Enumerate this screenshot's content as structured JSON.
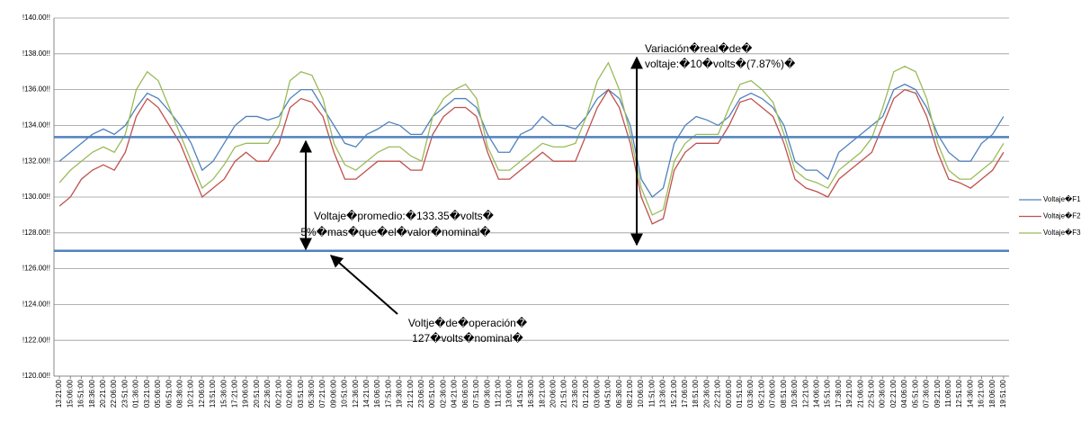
{
  "chart_data": {
    "type": "line",
    "categories": [
      "13:21:00",
      "15:06:00",
      "16:51:00",
      "18:36:00",
      "20:21:00",
      "22:06:00",
      "23:51:00",
      "01:36:00",
      "03:21:00",
      "05:06:00",
      "06:51:00",
      "08:36:00",
      "10:21:00",
      "12:06:00",
      "13:51:00",
      "15:36:00",
      "17:21:00",
      "19:06:00",
      "20:51:00",
      "22:36:00",
      "00:21:00",
      "02:06:00",
      "03:51:00",
      "05:36:00",
      "07:21:00",
      "09:06:00",
      "10:51:00",
      "12:36:00",
      "14:21:00",
      "16:06:00",
      "17:51:00",
      "19:36:00",
      "21:21:00",
      "23:06:00",
      "00:51:00",
      "02:36:00",
      "04:21:00",
      "06:06:00",
      "07:51:00",
      "09:36:00",
      "11:21:00",
      "13:06:00",
      "14:51:00",
      "16:36:00",
      "18:21:00",
      "20:06:00",
      "21:51:00",
      "23:36:00",
      "01:21:00",
      "03:06:00",
      "04:51:00",
      "06:36:00",
      "08:21:00",
      "10:06:00",
      "11:51:00",
      "13:36:00",
      "15:21:00",
      "17:06:00",
      "18:51:00",
      "20:36:00",
      "22:21:00",
      "00:06:00",
      "01:51:00",
      "03:36:00",
      "05:21:00",
      "07:06:00",
      "08:51:00",
      "10:36:00",
      "12:21:00",
      "14:06:00",
      "15:51:00",
      "17:36:00",
      "19:21:00",
      "21:06:00",
      "22:51:00",
      "00:36:00",
      "02:21:00",
      "04:06:00",
      "05:51:00",
      "07:36:00",
      "09:21:00",
      "11:06:00",
      "12:51:00",
      "14:36:00",
      "16:21:00",
      "18:06:00",
      "19:51:00"
    ],
    "series": [
      {
        "name": "Voltaje�F1",
        "color": "#4f81bd",
        "values": [
          132.0,
          132.5,
          133.0,
          133.5,
          133.8,
          133.5,
          134.0,
          135.0,
          135.8,
          135.5,
          134.8,
          134.0,
          133.0,
          131.5,
          132.0,
          133.0,
          134.0,
          134.5,
          134.5,
          134.3,
          134.5,
          135.5,
          136.0,
          136.0,
          135.0,
          134.0,
          133.0,
          132.8,
          133.5,
          133.8,
          134.2,
          134.0,
          133.5,
          133.5,
          134.5,
          135.0,
          135.5,
          135.5,
          135.0,
          133.5,
          132.5,
          132.5,
          133.5,
          133.8,
          134.5,
          134.0,
          134.0,
          133.8,
          134.5,
          135.5,
          136.0,
          135.5,
          134.0,
          131.0,
          130.0,
          130.5,
          133.0,
          134.0,
          134.5,
          134.3,
          134.0,
          134.5,
          135.5,
          135.8,
          135.5,
          135.0,
          134.0,
          132.0,
          131.5,
          131.5,
          131.0,
          132.5,
          133.0,
          133.5,
          134.0,
          134.5,
          136.0,
          136.3,
          136.0,
          135.0,
          133.5,
          132.5,
          132.0,
          132.0,
          133.0,
          133.5,
          134.5
        ]
      },
      {
        "name": "Voltaje�F2",
        "color": "#c0504d",
        "values": [
          129.5,
          130.0,
          131.0,
          131.5,
          131.8,
          131.5,
          132.5,
          134.5,
          135.5,
          135.0,
          134.0,
          133.0,
          131.5,
          130.0,
          130.5,
          131.0,
          132.0,
          132.5,
          132.0,
          132.0,
          133.0,
          135.0,
          135.5,
          135.3,
          134.5,
          132.5,
          131.0,
          131.0,
          131.5,
          132.0,
          132.0,
          132.0,
          131.5,
          131.5,
          133.5,
          134.5,
          135.0,
          135.0,
          134.5,
          132.5,
          131.0,
          131.0,
          131.5,
          132.0,
          132.5,
          132.0,
          132.0,
          132.0,
          133.5,
          135.0,
          136.0,
          135.0,
          133.0,
          130.0,
          128.5,
          128.8,
          131.5,
          132.5,
          133.0,
          133.0,
          133.0,
          134.0,
          135.3,
          135.5,
          135.0,
          134.5,
          133.0,
          131.0,
          130.5,
          130.3,
          130.0,
          131.0,
          131.5,
          132.0,
          132.5,
          134.0,
          135.5,
          136.0,
          135.8,
          134.5,
          132.5,
          131.0,
          130.8,
          130.5,
          131.0,
          131.5,
          132.5
        ]
      },
      {
        "name": "Voltaje�F3",
        "color": "#9bbb59",
        "values": [
          130.8,
          131.5,
          132.0,
          132.5,
          132.8,
          132.5,
          133.5,
          136.0,
          137.0,
          136.5,
          135.0,
          133.5,
          132.0,
          130.5,
          131.0,
          131.8,
          132.8,
          133.0,
          133.0,
          133.0,
          134.0,
          136.5,
          137.0,
          136.8,
          135.5,
          133.0,
          131.8,
          131.5,
          132.0,
          132.5,
          132.8,
          132.8,
          132.3,
          132.0,
          134.5,
          135.5,
          136.0,
          136.3,
          135.5,
          132.8,
          131.5,
          131.5,
          132.0,
          132.5,
          133.0,
          132.8,
          132.8,
          133.0,
          134.5,
          136.5,
          137.5,
          136.0,
          133.5,
          130.5,
          129.0,
          129.3,
          132.0,
          133.0,
          133.5,
          133.5,
          133.5,
          135.0,
          136.3,
          136.5,
          136.0,
          135.3,
          133.5,
          131.5,
          131.0,
          130.8,
          130.5,
          131.5,
          132.0,
          132.5,
          133.3,
          135.0,
          137.0,
          137.3,
          137.0,
          135.5,
          133.0,
          131.5,
          131.0,
          131.0,
          131.5,
          132.0,
          133.0
        ]
      }
    ],
    "ylim": [
      120,
      140
    ],
    "yticks": [
      {
        "value": 120,
        "label": "!120.00!!"
      },
      {
        "value": 122,
        "label": "!122.00!!"
      },
      {
        "value": 124,
        "label": "!124.00!!"
      },
      {
        "value": 126,
        "label": "!126.00!!"
      },
      {
        "value": 128,
        "label": "!128.00!!"
      },
      {
        "value": 130,
        "label": "!130.00!!"
      },
      {
        "value": 132,
        "label": "!132.00!!"
      },
      {
        "value": 134,
        "label": "!134.00!!"
      },
      {
        "value": 136,
        "label": "!136.00!!"
      },
      {
        "value": 138,
        "label": "!138.00!!"
      },
      {
        "value": 140,
        "label": "!140.00!!"
      }
    ],
    "grid": true,
    "legend": "right",
    "reference_lines": [
      {
        "value": 133.35,
        "color": "#4f81bd"
      },
      {
        "value": 127,
        "color": "#4f81bd"
      }
    ],
    "annotations": [
      {
        "lines": [
          "Variación�real�de�",
          "voltaje:�10�volts�(7.87%)�"
        ]
      },
      {
        "lines": [
          "Voltaje�promedio:�133.35�volts�",
          "5%�mas�que�el�valor�nominal�"
        ]
      },
      {
        "lines": [
          "Voltje�de�operación�",
          "127�volts�nominal�"
        ]
      }
    ]
  }
}
